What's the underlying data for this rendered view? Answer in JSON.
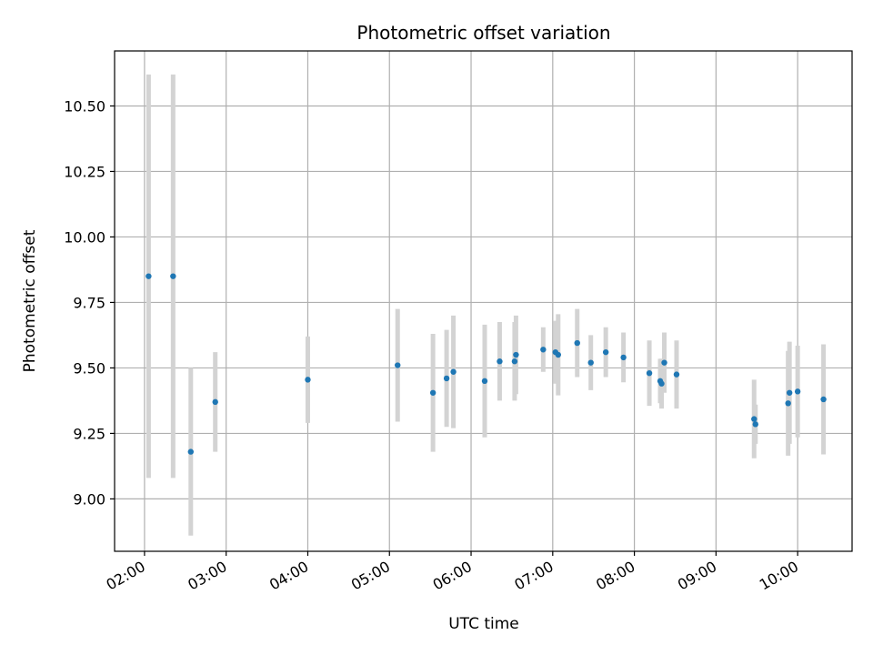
{
  "chart_data": {
    "type": "scatter",
    "title": "Photometric offset variation",
    "xlabel": "UTC time",
    "ylabel": "Photometric offset",
    "xlim": [
      "01:38",
      "10:40"
    ],
    "ylim": [
      8.8,
      10.71
    ],
    "grid": true,
    "x_ticks": [
      "02:00",
      "03:00",
      "04:00",
      "05:00",
      "06:00",
      "07:00",
      "08:00",
      "09:00",
      "10:00"
    ],
    "y_ticks": [
      9.0,
      9.25,
      9.5,
      9.75,
      10.0,
      10.25,
      10.5
    ],
    "y_tick_labels": [
      "9.00",
      "9.25",
      "9.50",
      "9.75",
      "10.00",
      "10.25",
      "10.50"
    ],
    "marker_color": "#1f77b4",
    "errorbar_color": "#d3d3d3",
    "series": [
      {
        "x": [
          "02:03",
          "02:21",
          "02:34",
          "02:52",
          "04:00",
          "05:06",
          "05:32",
          "05:42",
          "05:47",
          "06:10",
          "06:21",
          "06:32",
          "06:33",
          "06:53",
          "07:02",
          "07:04",
          "07:18",
          "07:28",
          "07:39",
          "07:52",
          "08:11",
          "08:19",
          "08:20",
          "08:22",
          "08:31",
          "09:28",
          "09:29",
          "09:53",
          "09:54",
          "10:00",
          "10:19"
        ],
        "y": [
          9.85,
          9.85,
          9.18,
          9.37,
          9.455,
          9.51,
          9.405,
          9.46,
          9.485,
          9.45,
          9.525,
          9.525,
          9.55,
          9.57,
          9.56,
          9.55,
          9.595,
          9.52,
          9.56,
          9.54,
          9.48,
          9.45,
          9.44,
          9.52,
          9.475,
          9.305,
          9.285,
          9.365,
          9.405,
          9.41,
          9.38
        ],
        "yerr": [
          0.77,
          0.77,
          0.32,
          0.19,
          0.165,
          0.215,
          0.225,
          0.185,
          0.215,
          0.215,
          0.15,
          0.15,
          0.15,
          0.085,
          0.12,
          0.155,
          0.13,
          0.105,
          0.095,
          0.095,
          0.125,
          0.085,
          0.095,
          0.115,
          0.13,
          0.15,
          0.075,
          0.2,
          0.195,
          0.175,
          0.21
        ]
      }
    ]
  }
}
